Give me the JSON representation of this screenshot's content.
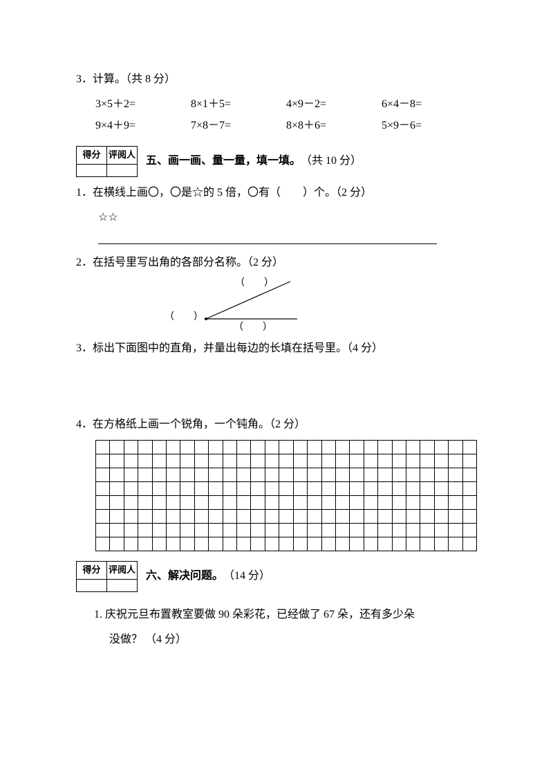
{
  "q3": {
    "title": "3．计算。（共 8 分）",
    "row1": [
      "3×5＋2=",
      "8×1＋5=",
      "4×9－2=",
      "6×4－8="
    ],
    "row2": [
      "9×4＋9=",
      "7×8－7=",
      "8×8＋6=",
      "5×9－6="
    ]
  },
  "scorebox": {
    "c1": "得分",
    "c2": "评阅人"
  },
  "sec5": {
    "title": "五、画一画、量一量，填一填。",
    "points": "（共 10 分）",
    "q1": "1．在横线上画〇，〇是☆的 5 倍，〇有（　　）个。（2 分）",
    "q1_stars": "☆☆",
    "q2": "2．在括号里写出角的各部分名称。（2 分）",
    "angle_label": "（　　）",
    "q3": "3．标出下面图中的直角，并量出每边的长填在括号里。（4 分）",
    "q4": "4．在方格纸上画一个锐角，一个钝角。（2 分）",
    "grid": {
      "cols": 27,
      "rows": 8
    }
  },
  "sec6": {
    "title": "六、解决问题。",
    "points": "（14 分）",
    "q1_a": "1. 庆祝元旦布置教室要做 90 朵彩花，已经做了 67 朵，还有多少朵",
    "q1_b": "没做？ （4 分）"
  },
  "colors": {
    "text": "#000000",
    "bg": "#ffffff",
    "border": "#000000"
  }
}
